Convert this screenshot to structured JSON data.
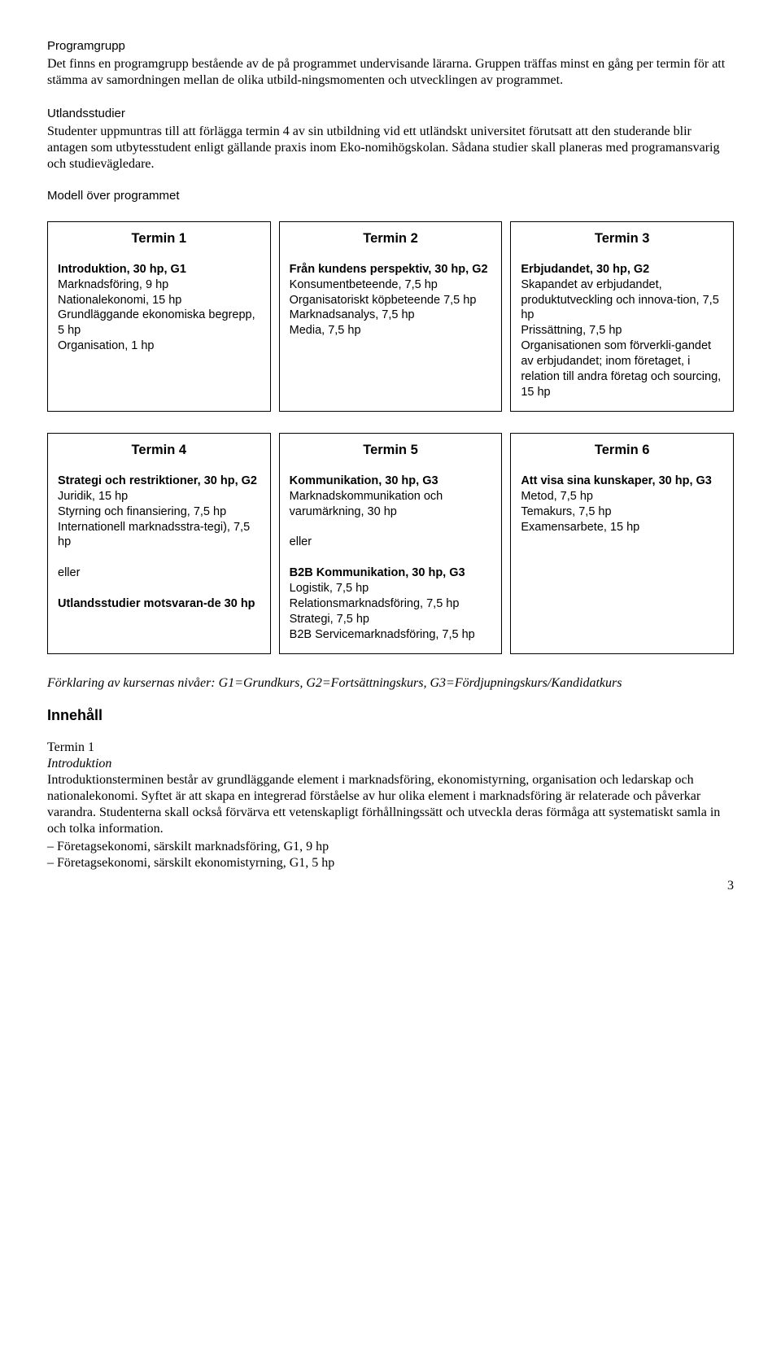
{
  "sections": {
    "programgrupp": {
      "heading": "Programgrupp",
      "body": "Det finns en programgrupp bestående av de på programmet undervisande lärarna. Gruppen träffas minst en gång per termin för att stämma av samordningen mellan de olika utbild-ningsmomenten och utvecklingen av programmet."
    },
    "utlandsstudier": {
      "heading": "Utlandsstudier",
      "body": "Studenter uppmuntras till att förlägga termin 4 av sin utbildning vid ett utländskt universitet förutsatt att den studerande blir antagen som utbytesstudent enligt gällande praxis inom Eko-nomihögskolan. Sådana studier skall planeras med programansvarig och studievägledare."
    },
    "modell": {
      "heading": "Modell över programmet"
    }
  },
  "terms_row1": [
    {
      "title": "Termin 1",
      "bold_lead": "Introduktion, 30 hp, G1",
      "rest": "Marknadsföring, 9 hp\nNationalekonomi, 15 hp\nGrundläggande ekonomiska begrepp, 5 hp\nOrganisation, 1 hp"
    },
    {
      "title": "Termin 2",
      "bold_lead": "Från kundens perspektiv, 30 hp, G2",
      "rest": "Konsumentbeteende, 7,5 hp\nOrganisatoriskt köpbeteende 7,5 hp\nMarknadsanalys, 7,5 hp\nMedia, 7,5 hp"
    },
    {
      "title": "Termin 3",
      "bold_lead": "Erbjudandet, 30 hp, G2",
      "rest": "Skapandet av erbjudandet, produktutveckling och innova-tion, 7,5 hp\nPrissättning, 7,5 hp\nOrganisationen som förverkli-gandet av erbjudandet; inom företaget, i relation till andra företag och sourcing, 15 hp"
    }
  ],
  "terms_row2": [
    {
      "title": "Termin 4",
      "segments": [
        {
          "bold": true,
          "text": "Strategi och restriktioner, 30 hp, G2"
        },
        {
          "bold": false,
          "text": "Juridik, 15 hp\nStyrning och finansiering, 7,5 hp\nInternationell marknadsstra-tegi), 7,5 hp\n\neller\n"
        },
        {
          "bold": true,
          "text": "Utlandsstudier motsvaran-de 30 hp"
        }
      ]
    },
    {
      "title": "Termin 5",
      "segments": [
        {
          "bold": true,
          "text": "Kommunikation, 30 hp, G3"
        },
        {
          "bold": false,
          "text": "Marknadskommunikation och varumärkning, 30 hp\n\neller\n"
        },
        {
          "bold": true,
          "text": "B2B Kommunikation, 30 hp, G3"
        },
        {
          "bold": false,
          "text": "Logistik, 7,5 hp\nRelationsmarknadsföring, 7,5 hp\nStrategi, 7,5 hp\nB2B Servicemarknadsföring, 7,5 hp"
        }
      ]
    },
    {
      "title": "Termin 6",
      "segments": [
        {
          "bold": true,
          "text": "Att visa sina kunskaper, 30 hp, G3"
        },
        {
          "bold": false,
          "text": "Metod, 7,5 hp\nTemakurs, 7,5 hp\nExamensarbete, 15 hp"
        }
      ]
    }
  ],
  "explanation": "Förklaring av kursernas nivåer: G1=Grundkurs, G2=Fortsättningskurs, G3=Fördjupningskurs/Kandidatkurs",
  "innehall": {
    "heading": "Innehåll",
    "term_label": "Termin 1",
    "term_sub": "Introduktion",
    "body": "Introduktionsterminen består av grundläggande element i marknadsföring, ekonomistyrning, organisation och ledarskap och nationalekonomi. Syftet är att skapa en integrerad förståelse av hur olika element i marknadsföring är relaterade och påverkar varandra. Studenterna skall också förvärva ett vetenskapligt förhållningssätt och utveckla deras förmåga att systematiskt samla in och tolka information.",
    "bullets": [
      "– Företagsekonomi, särskilt marknadsföring, G1, 9 hp",
      "– Företagsekonomi, särskilt ekonomistyrning, G1, 5 hp"
    ]
  },
  "page_number": "3"
}
